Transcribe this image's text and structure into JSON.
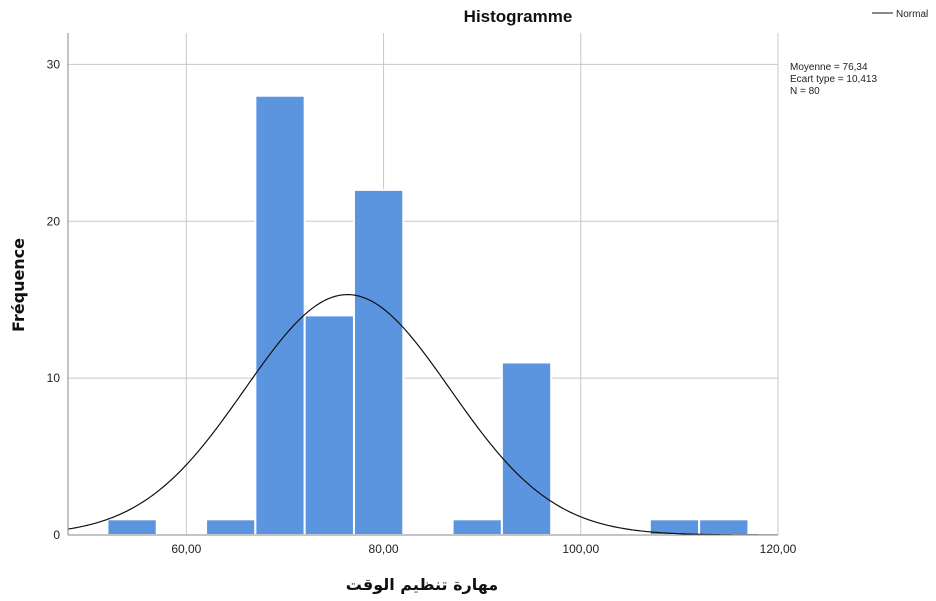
{
  "chart_data": {
    "type": "bar",
    "title": "Histogramme",
    "xlabel": "مهارة تنظيم الوقت",
    "ylabel": "Fréquence",
    "xlim": [
      48,
      120
    ],
    "ylim": [
      0,
      32
    ],
    "x_ticks": [
      60,
      80,
      100,
      120
    ],
    "x_tick_labels": [
      "60,00",
      "80,00",
      "100,00",
      "120,00"
    ],
    "y_ticks": [
      0,
      10,
      20,
      30
    ],
    "y_tick_labels": [
      "0",
      "10",
      "20",
      "30"
    ],
    "grid": true,
    "bin_width": 5,
    "bins": [
      {
        "start": 52,
        "end": 57,
        "count": 1
      },
      {
        "start": 62,
        "end": 67,
        "count": 1
      },
      {
        "start": 67,
        "end": 72,
        "count": 28
      },
      {
        "start": 72,
        "end": 77,
        "count": 14
      },
      {
        "start": 77,
        "end": 82,
        "count": 22
      },
      {
        "start": 87,
        "end": 92,
        "count": 1
      },
      {
        "start": 92,
        "end": 97,
        "count": 11
      },
      {
        "start": 107,
        "end": 112,
        "count": 1
      },
      {
        "start": 112,
        "end": 117,
        "count": 1
      }
    ],
    "normal_curve": {
      "mean": 76.34,
      "sd": 10.413,
      "n": 80
    },
    "stats_lines": [
      "Moyenne = 76,34",
      "Ecart type = 10,413",
      "N = 80"
    ],
    "legend": {
      "entries": [
        "Normal"
      ],
      "placement": "top-right"
    },
    "colors": {
      "bar": "#5b95e0",
      "bar_edge": "#ffffff",
      "curve": "#111111",
      "grid": "#c8c8c8",
      "axis": "#888888"
    }
  }
}
